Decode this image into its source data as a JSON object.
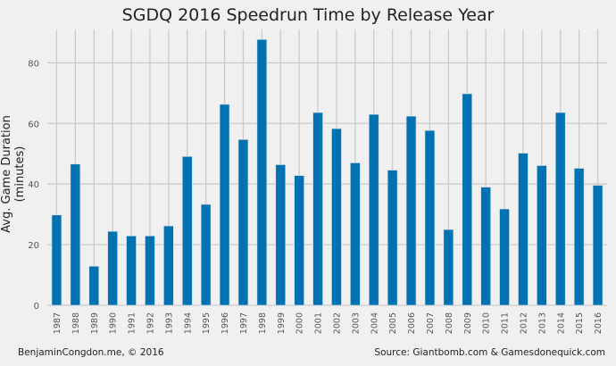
{
  "chart_data": {
    "type": "bar",
    "title": "SGDQ 2016 Speedrun Time by Release Year",
    "xlabel": "",
    "ylabel": "Avg. Game Duration (minutes)",
    "categories": [
      "1987",
      "1988",
      "1989",
      "1990",
      "1991",
      "1992",
      "1993",
      "1994",
      "1995",
      "1996",
      "1997",
      "1998",
      "1999",
      "2000",
      "2001",
      "2002",
      "2003",
      "2004",
      "2005",
      "2006",
      "2007",
      "2008",
      "2009",
      "2010",
      "2011",
      "2012",
      "2013",
      "2014",
      "2015",
      "2016"
    ],
    "values": [
      29.8,
      46.6,
      12.9,
      24.4,
      22.9,
      22.9,
      26.2,
      49.1,
      33.3,
      66.3,
      54.7,
      87.7,
      46.4,
      42.8,
      63.6,
      58.3,
      47.0,
      63.0,
      44.6,
      62.4,
      57.7,
      25.0,
      69.8,
      39.0,
      31.8,
      50.2,
      46.1,
      63.6,
      45.2,
      39.6
    ],
    "ylim": [
      0,
      91
    ],
    "yticks": [
      0,
      20,
      40,
      60,
      80
    ],
    "grid": true,
    "bar_color": "#0072b2"
  },
  "footer": {
    "left": "BenjaminCongdon.me, © 2016",
    "right": "Source: Giantbomb.com & Gamesdonequick.com"
  }
}
